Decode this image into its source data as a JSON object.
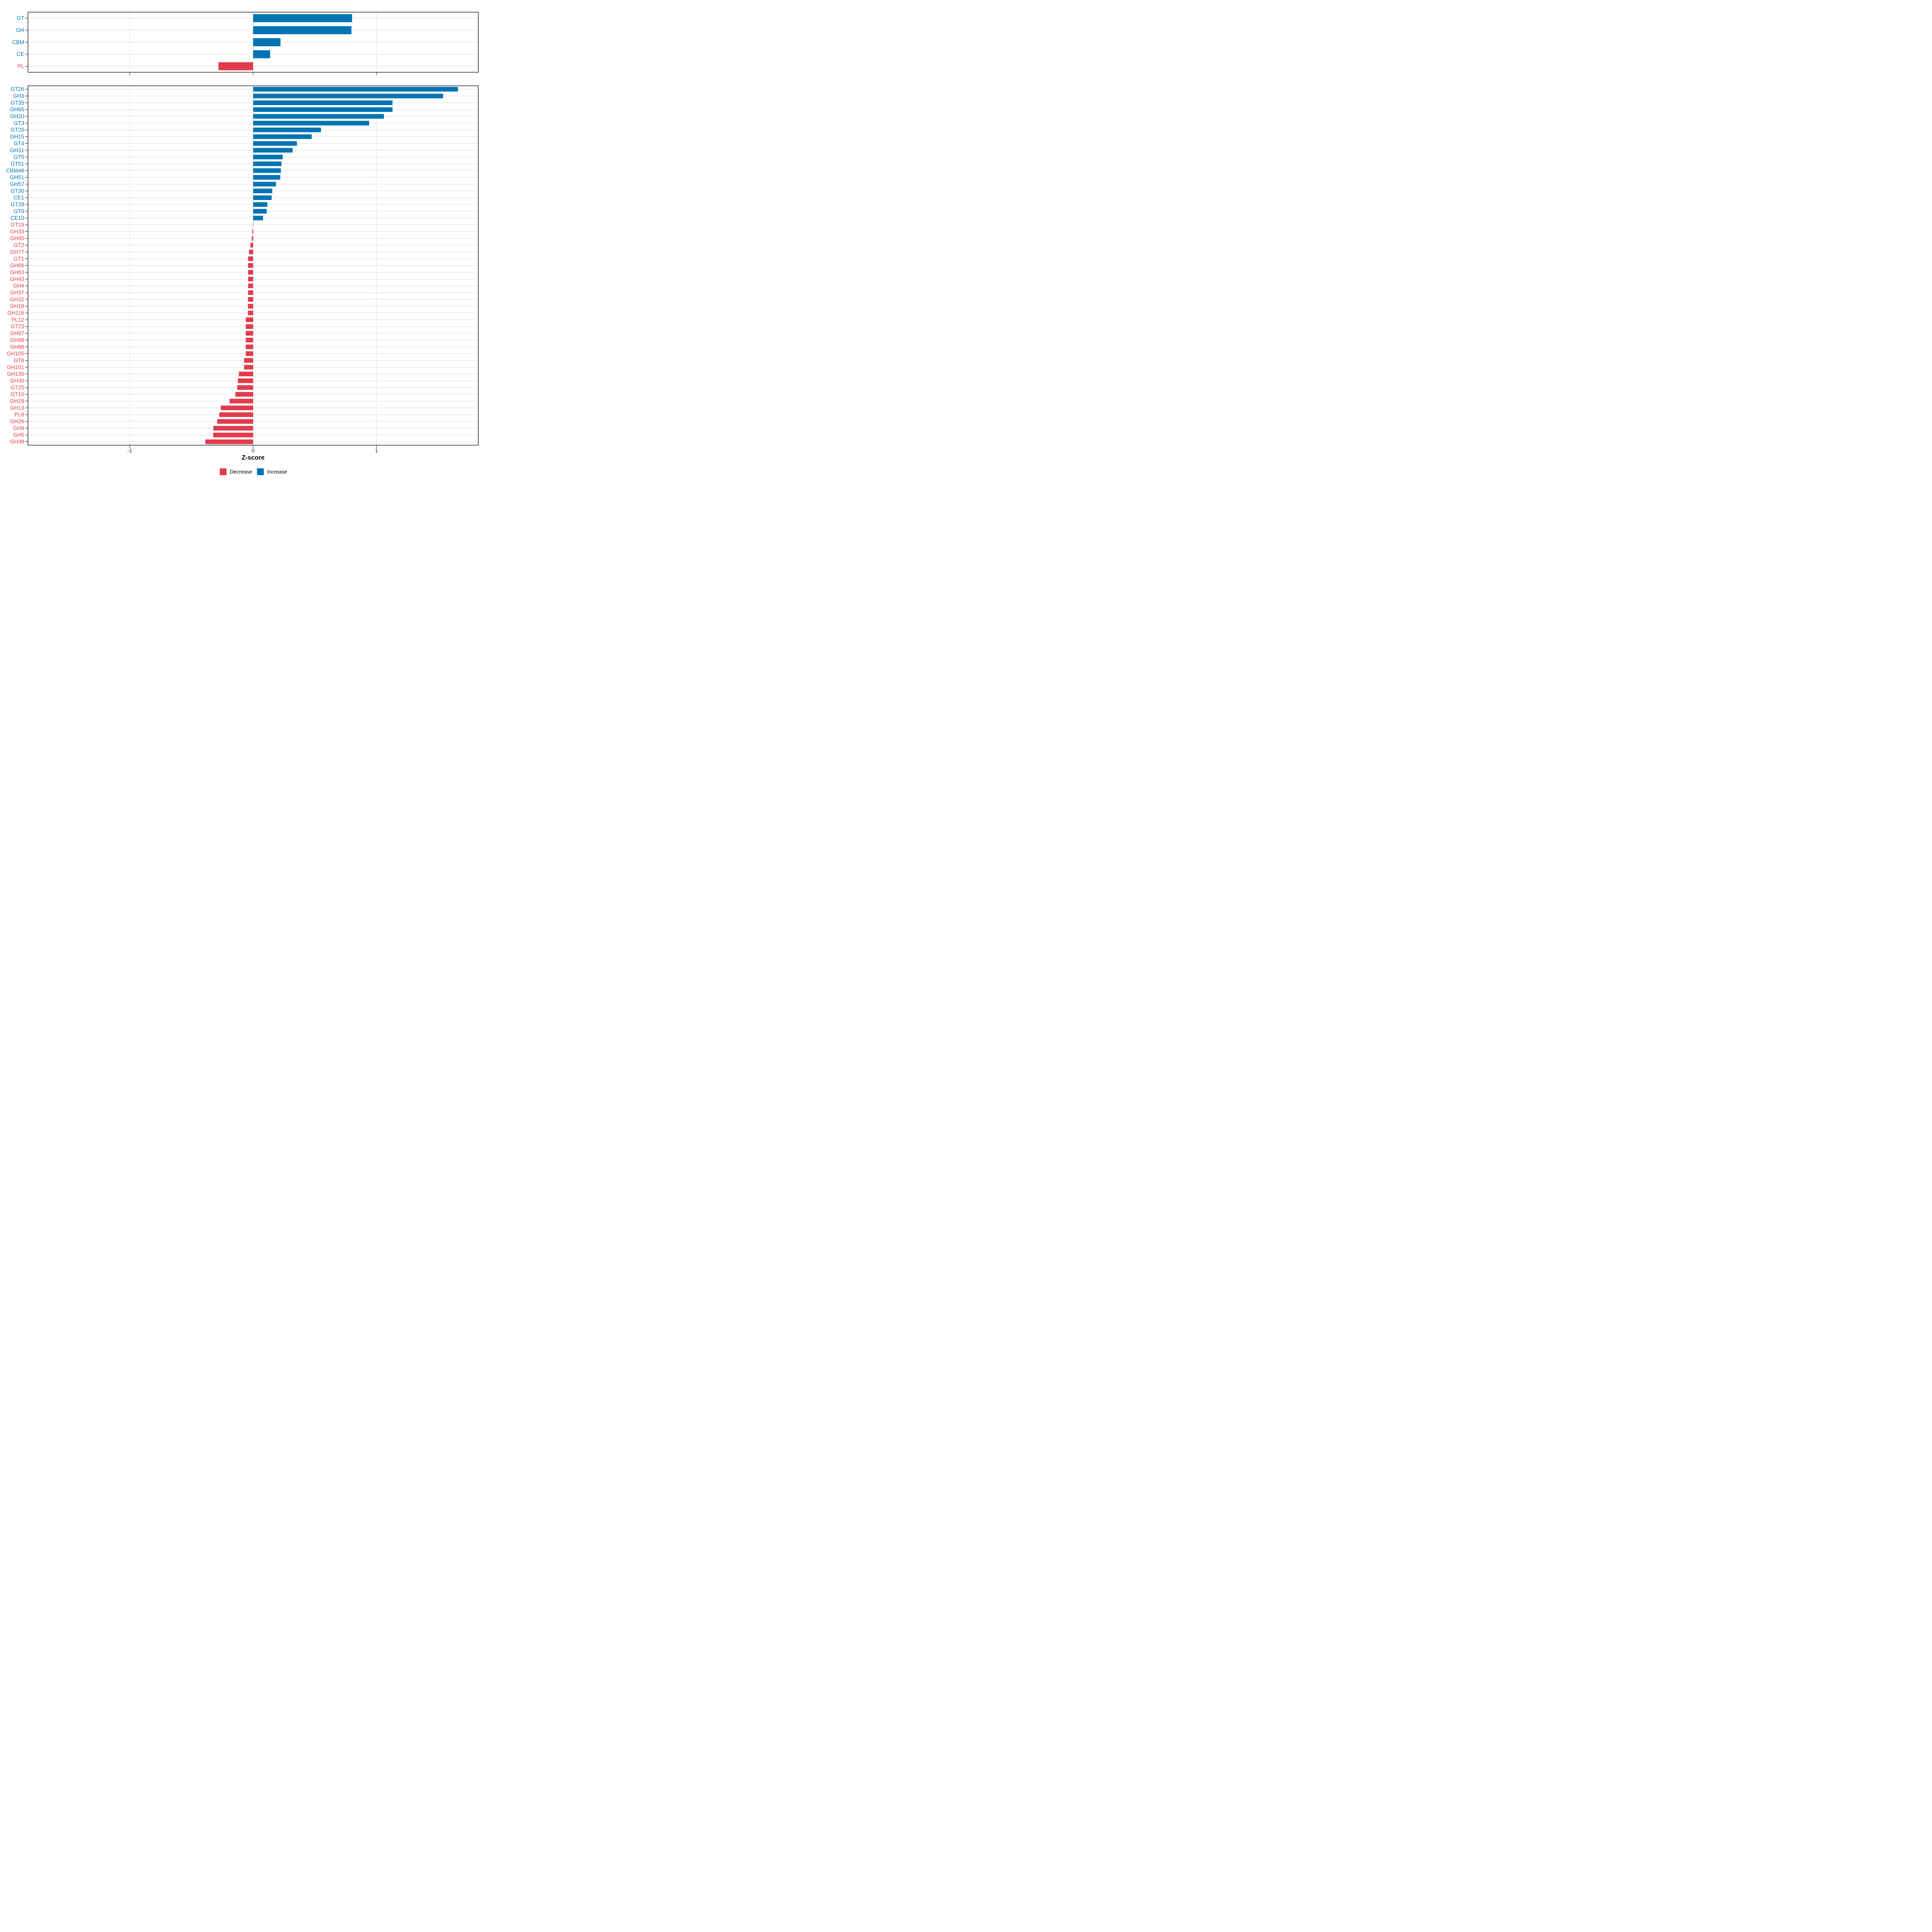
{
  "figure": {
    "background": "#ffffff",
    "x_axis": {
      "title": "Z-score",
      "ticks": [
        {
          "value": -1,
          "label": "-1"
        },
        {
          "value": 0,
          "label": "0"
        },
        {
          "value": 1,
          "label": "1"
        }
      ],
      "range": [
        -1.825,
        1.825
      ]
    },
    "colors": {
      "increase": "#0074B3",
      "decrease": "#E23B4C",
      "grid": "#E2E2E2",
      "panel_border": "#000000",
      "tick_mark": "#1A1A1A",
      "axis_text": "#333333",
      "axis_title": "#000000",
      "legend_text": "#000000"
    },
    "legend": {
      "items": [
        {
          "label": "Decrease",
          "color": "#E23B4C",
          "direction": "decrease"
        },
        {
          "label": "Increase",
          "color": "#0074B3",
          "direction": "increase"
        }
      ]
    }
  },
  "chart_data": [
    {
      "type": "bar",
      "panel": "cazyme-classes",
      "orientation": "horizontal",
      "xlabel": "Z-score",
      "xlim": [
        -1.825,
        1.825
      ],
      "grid": true,
      "categories": [
        "GT",
        "GH",
        "CBM",
        "CE",
        "PL"
      ],
      "values": [
        0.802,
        0.797,
        0.222,
        0.138,
        -0.281
      ]
    },
    {
      "type": "bar",
      "panel": "cazyme-families",
      "orientation": "horizontal",
      "xlabel": "Z-score",
      "xlim": [
        -1.825,
        1.825
      ],
      "grid": true,
      "categories": [
        "GT26",
        "GH3",
        "GT35",
        "GH65",
        "GH20",
        "GT3",
        "GT20",
        "GH15",
        "GT4",
        "GH31",
        "GT5",
        "GT51",
        "CBM48",
        "GH51",
        "GH57",
        "GT30",
        "CE1",
        "GT28",
        "GT9",
        "CE10",
        "GT19",
        "GH33",
        "GH95",
        "GT2",
        "GH77",
        "GT1",
        "GH66",
        "GH63",
        "GH43",
        "GH4",
        "GH37",
        "GH32",
        "GH18",
        "GH116",
        "PL12",
        "GT23",
        "GH97",
        "GH88",
        "GH68",
        "GH105",
        "GT6",
        "GH101",
        "GH130",
        "GH30",
        "GT25",
        "GT10",
        "GH29",
        "GH13",
        "PL8",
        "GH26",
        "GH9",
        "GH5",
        "GH38"
      ],
      "values": [
        1.66,
        1.54,
        1.13,
        1.13,
        1.06,
        0.94,
        0.55,
        0.475,
        0.355,
        0.32,
        0.24,
        0.23,
        0.225,
        0.22,
        0.185,
        0.155,
        0.15,
        0.115,
        0.11,
        0.08,
        -0.002,
        -0.007,
        -0.011,
        -0.023,
        -0.033,
        -0.041,
        -0.041,
        -0.041,
        -0.041,
        -0.041,
        -0.041,
        -0.042,
        -0.042,
        -0.042,
        -0.06,
        -0.06,
        -0.06,
        -0.06,
        -0.06,
        -0.06,
        -0.073,
        -0.073,
        -0.115,
        -0.124,
        -0.129,
        -0.144,
        -0.191,
        -0.262,
        -0.274,
        -0.291,
        -0.322,
        -0.324,
        -0.387
      ]
    }
  ]
}
